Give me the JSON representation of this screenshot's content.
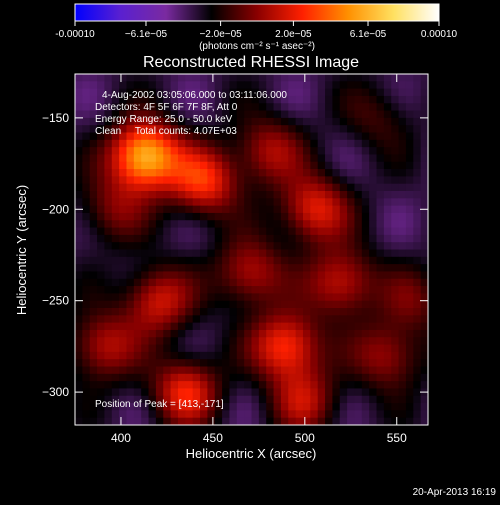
{
  "chart_data": {
    "type": "heatmap",
    "title": "Reconstructed RHESSI Image",
    "xlabel": "Heliocentric X (arcsec)",
    "ylabel": "Heliocentric Y (arcsec)",
    "xlim": [
      375,
      567
    ],
    "ylim": [
      -318,
      -126
    ],
    "x_ticks": [
      400,
      450,
      500,
      550
    ],
    "y_ticks": [
      -150,
      -200,
      -250,
      -300
    ],
    "colorbar": {
      "ticks": [
        -0.0001,
        -6.1e-05,
        -2e-05,
        2e-05,
        6.1e-05,
        0.0001
      ],
      "tick_labels": [
        "-0.00010",
        "−6.1e−05",
        "−2.0e−05",
        "2.0e−05",
        "6.1e−05",
        "0.00010"
      ],
      "range": [
        -0.0001,
        0.0001
      ],
      "unit_label": "(photons cm⁻² s⁻¹ asec⁻²)",
      "colormap": [
        "#0000ff",
        "#5a20d0",
        "#7a2aa0",
        "#000000",
        "#8a0000",
        "#ff2000",
        "#ff9000",
        "#ffe060",
        "#ffffff"
      ]
    },
    "annotations": [
      "4-Aug-2002 03:05:06.000 to 03:11:06.000",
      "Detectors: 4F 5F 6F 7F 8F, Att 0",
      "Energy Range: 25.0 - 50.0 keV",
      "Clean     Total counts: 4.07E+03"
    ],
    "peak_label": "Position of Peak = [413,-171]",
    "sources": [
      {
        "x": 413,
        "y": -171,
        "value": 0.0001
      },
      {
        "x": 445,
        "y": -185,
        "value": 6e-05
      },
      {
        "x": 480,
        "y": -168,
        "value": 4e-05
      },
      {
        "x": 505,
        "y": -200,
        "value": 5.5e-05
      },
      {
        "x": 520,
        "y": -240,
        "value": 5e-05
      },
      {
        "x": 470,
        "y": -235,
        "value": 4.5e-05
      },
      {
        "x": 420,
        "y": -250,
        "value": 5e-05
      },
      {
        "x": 390,
        "y": -275,
        "value": 4.5e-05
      },
      {
        "x": 435,
        "y": -300,
        "value": 5.5e-05
      },
      {
        "x": 490,
        "y": -275,
        "value": 6.5e-05
      },
      {
        "x": 500,
        "y": -305,
        "value": 4e-05
      },
      {
        "x": 545,
        "y": -280,
        "value": 4e-05
      },
      {
        "x": 560,
        "y": -250,
        "value": 2.5e-05
      },
      {
        "x": 395,
        "y": -200,
        "value": 3e-05
      },
      {
        "x": 540,
        "y": -150,
        "value": 2e-05
      }
    ]
  },
  "footer": {
    "timestamp": "20-Apr-2013 16:19"
  }
}
